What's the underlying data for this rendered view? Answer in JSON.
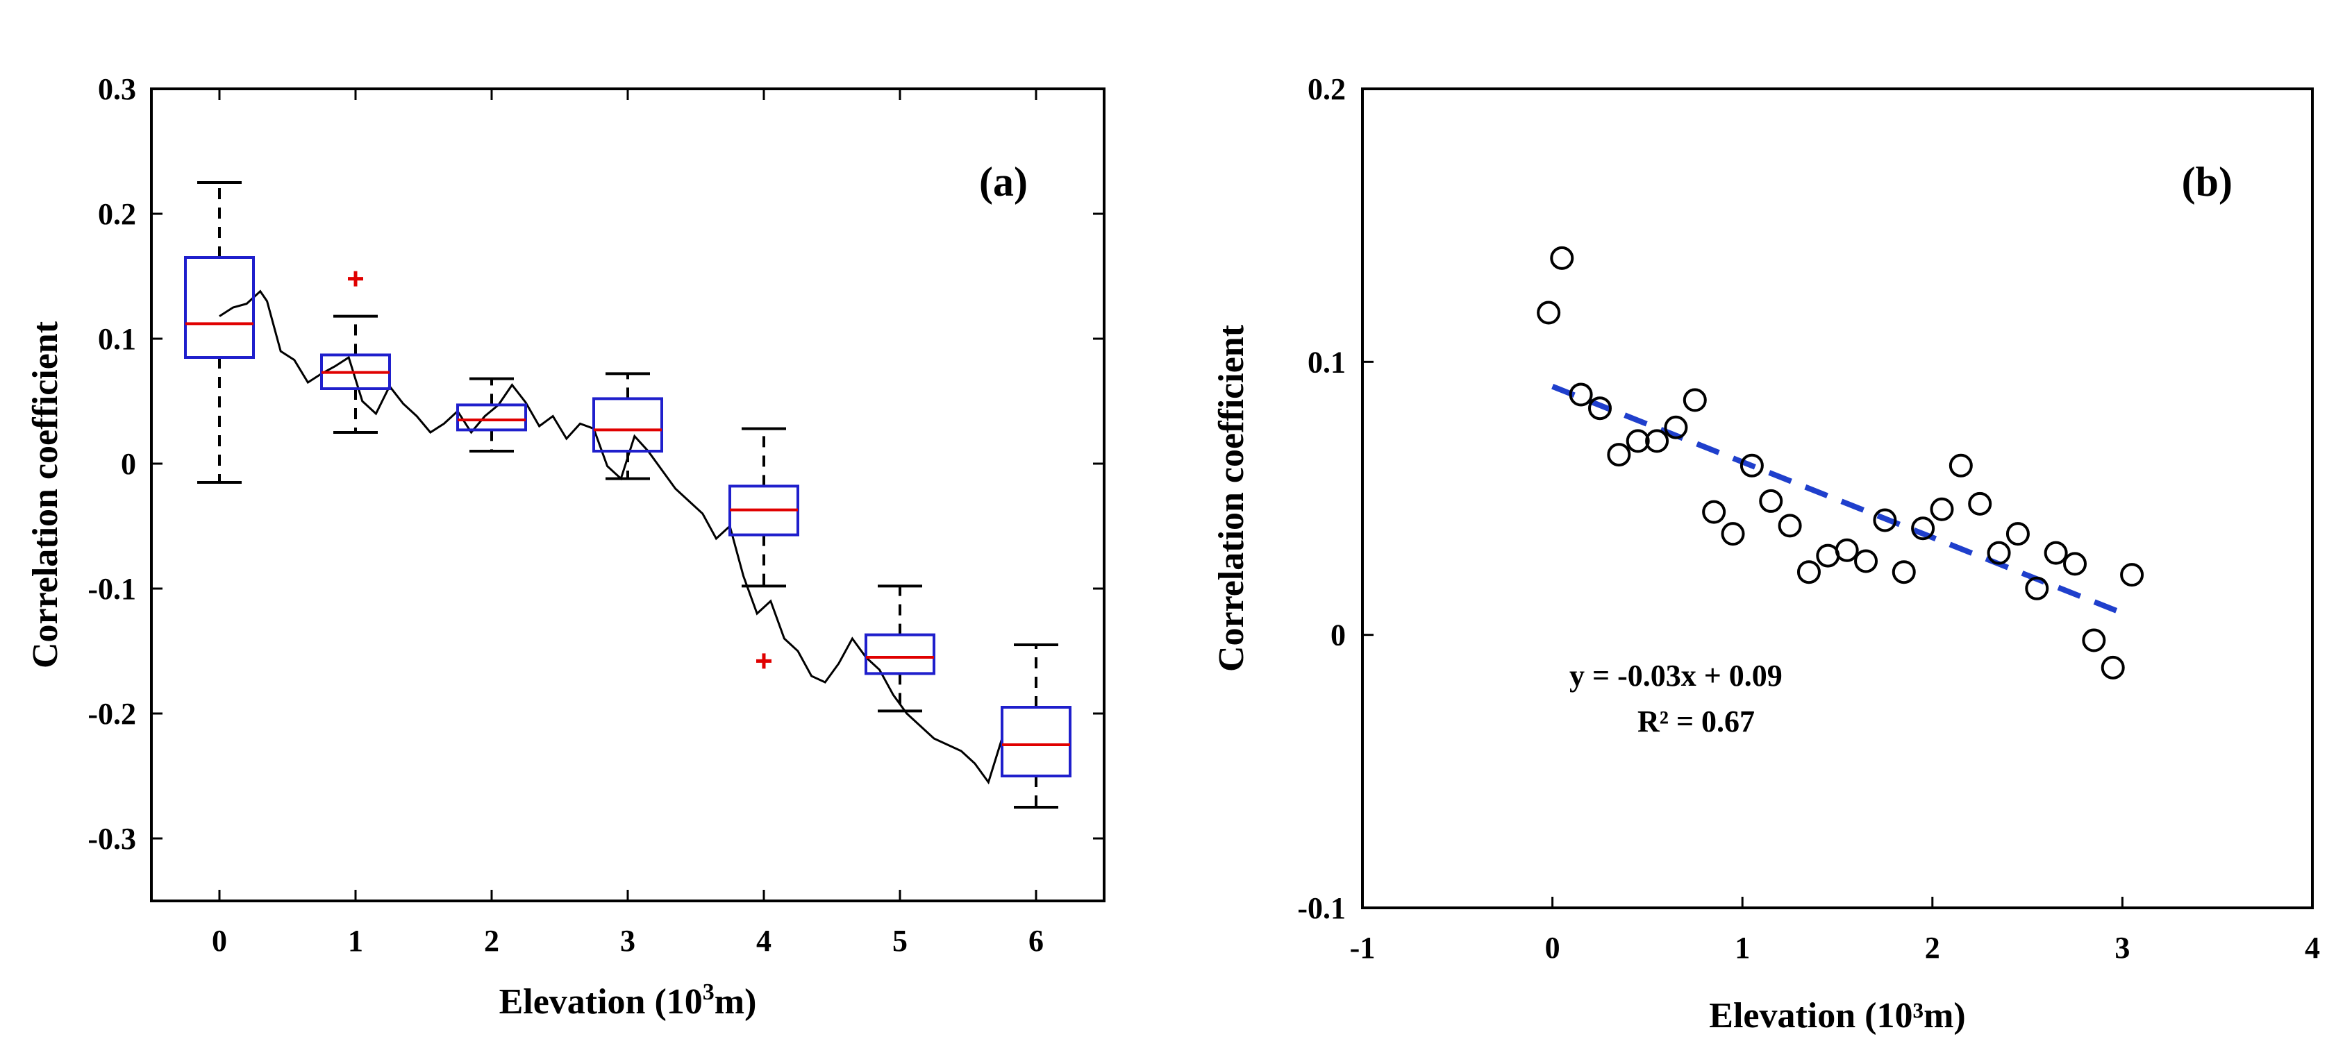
{
  "chart_data": [
    {
      "type": "box",
      "panel_label": "(a)",
      "xlabel": "Elevation (10",
      "xlabel_sup": "3",
      "xlabel_end": "m)",
      "ylabel": "Correlation coefficient",
      "xlim": [
        -0.5,
        6.5
      ],
      "ylim": [
        -0.35,
        0.3
      ],
      "xticks": [
        0,
        1,
        2,
        3,
        4,
        5,
        6
      ],
      "xtick_labels": [
        "0",
        "1",
        "2",
        "3",
        "4",
        "5",
        "6"
      ],
      "yticks": [
        0.3,
        0.2,
        0.1,
        0,
        -0.1,
        -0.2,
        -0.3
      ],
      "ytick_labels": [
        "0.3",
        "0.2",
        "0.1",
        "0",
        "-0.1",
        "-0.2",
        "-0.3"
      ],
      "box_color": "#1f1fcc",
      "median_color": "#e00000",
      "outlier_color": "#e00000",
      "boxes": [
        {
          "x": 0,
          "whisker_low": -0.015,
          "q1": 0.085,
          "median": 0.112,
          "q3": 0.165,
          "whisker_high": 0.225,
          "outliers": []
        },
        {
          "x": 1,
          "whisker_low": 0.025,
          "q1": 0.06,
          "median": 0.073,
          "q3": 0.087,
          "whisker_high": 0.118,
          "outliers": [
            0.148
          ]
        },
        {
          "x": 2,
          "whisker_low": 0.01,
          "q1": 0.027,
          "median": 0.035,
          "q3": 0.047,
          "whisker_high": 0.068,
          "outliers": []
        },
        {
          "x": 3,
          "whisker_low": -0.012,
          "q1": 0.01,
          "median": 0.027,
          "q3": 0.052,
          "whisker_high": 0.072,
          "outliers": []
        },
        {
          "x": 4,
          "whisker_low": -0.098,
          "q1": -0.057,
          "median": -0.037,
          "q3": -0.018,
          "whisker_high": 0.028,
          "outliers": [
            -0.158
          ]
        },
        {
          "x": 5,
          "whisker_low": -0.198,
          "q1": -0.168,
          "median": -0.155,
          "q3": -0.137,
          "whisker_high": -0.098,
          "outliers": []
        },
        {
          "x": 6,
          "whisker_low": -0.275,
          "q1": -0.25,
          "median": -0.225,
          "q3": -0.195,
          "whisker_high": -0.145,
          "outliers": []
        }
      ],
      "series": [
        {
          "name": "profile",
          "color": "#000000",
          "x": [
            0,
            0.1,
            0.2,
            0.3,
            0.35,
            0.45,
            0.55,
            0.65,
            0.75,
            0.85,
            0.95,
            1.05,
            1.15,
            1.25,
            1.35,
            1.45,
            1.55,
            1.65,
            1.75,
            1.85,
            1.95,
            2.05,
            2.15,
            2.25,
            2.35,
            2.45,
            2.55,
            2.65,
            2.75,
            2.85,
            2.95,
            3.05,
            3.15,
            3.25,
            3.35,
            3.45,
            3.55,
            3.65,
            3.75,
            3.85,
            3.95,
            4.05,
            4.15,
            4.25,
            4.35,
            4.45,
            4.55,
            4.65,
            4.75,
            4.85,
            4.95,
            5.05,
            5.15,
            5.25,
            5.35,
            5.45,
            5.55,
            5.65,
            5.75
          ],
          "y": [
            0.118,
            0.125,
            0.128,
            0.138,
            0.13,
            0.09,
            0.083,
            0.065,
            0.072,
            0.078,
            0.085,
            0.05,
            0.04,
            0.062,
            0.048,
            0.038,
            0.025,
            0.032,
            0.042,
            0.025,
            0.038,
            0.047,
            0.063,
            0.049,
            0.03,
            0.038,
            0.02,
            0.032,
            0.028,
            -0.002,
            -0.012,
            0.022,
            0.01,
            -0.005,
            -0.02,
            -0.03,
            -0.04,
            -0.06,
            -0.05,
            -0.09,
            -0.12,
            -0.11,
            -0.14,
            -0.15,
            -0.17,
            -0.175,
            -0.16,
            -0.14,
            -0.155,
            -0.165,
            -0.185,
            -0.2,
            -0.21,
            -0.22,
            -0.225,
            -0.23,
            -0.24,
            -0.255,
            -0.22
          ]
        }
      ]
    },
    {
      "type": "scatter",
      "panel_label": "(b)",
      "xlabel": "Elevation (10³m)",
      "ylabel": "Correlation coefficient",
      "xlim": [
        -1,
        4
      ],
      "ylim": [
        -0.1,
        0.2
      ],
      "xticks": [
        -1,
        0,
        1,
        2,
        3,
        4
      ],
      "xtick_labels": [
        "-1",
        "0",
        "1",
        "2",
        "3",
        "4"
      ],
      "yticks": [
        0.2,
        0.1,
        0,
        -0.1
      ],
      "ytick_labels": [
        "0.2",
        "0.1",
        "0",
        "-0.1"
      ],
      "marker_color": "#000000",
      "trend_color": "#1f3fcc",
      "trend": {
        "x": [
          0,
          3
        ],
        "y": [
          0.091,
          0.008
        ]
      },
      "equation": "y = -0.03x + 0.09",
      "r_squared": "R² = 0.67",
      "points": {
        "x": [
          -0.02,
          0.05,
          0.15,
          0.25,
          0.35,
          0.45,
          0.55,
          0.65,
          0.75,
          0.85,
          0.95,
          1.05,
          1.15,
          1.25,
          1.35,
          1.45,
          1.55,
          1.65,
          1.75,
          1.85,
          1.95,
          2.05,
          2.15,
          2.25,
          2.35,
          2.45,
          2.55,
          2.65,
          2.75,
          2.85,
          2.95,
          3.05
        ],
        "y": [
          0.118,
          0.138,
          0.088,
          0.083,
          0.066,
          0.071,
          0.071,
          0.076,
          0.086,
          0.045,
          0.037,
          0.062,
          0.049,
          0.04,
          0.023,
          0.029,
          0.031,
          0.027,
          0.042,
          0.023,
          0.039,
          0.046,
          0.062,
          0.048,
          0.03,
          0.037,
          0.017,
          0.03,
          0.026,
          -0.002,
          -0.012,
          0.022
        ]
      }
    }
  ]
}
